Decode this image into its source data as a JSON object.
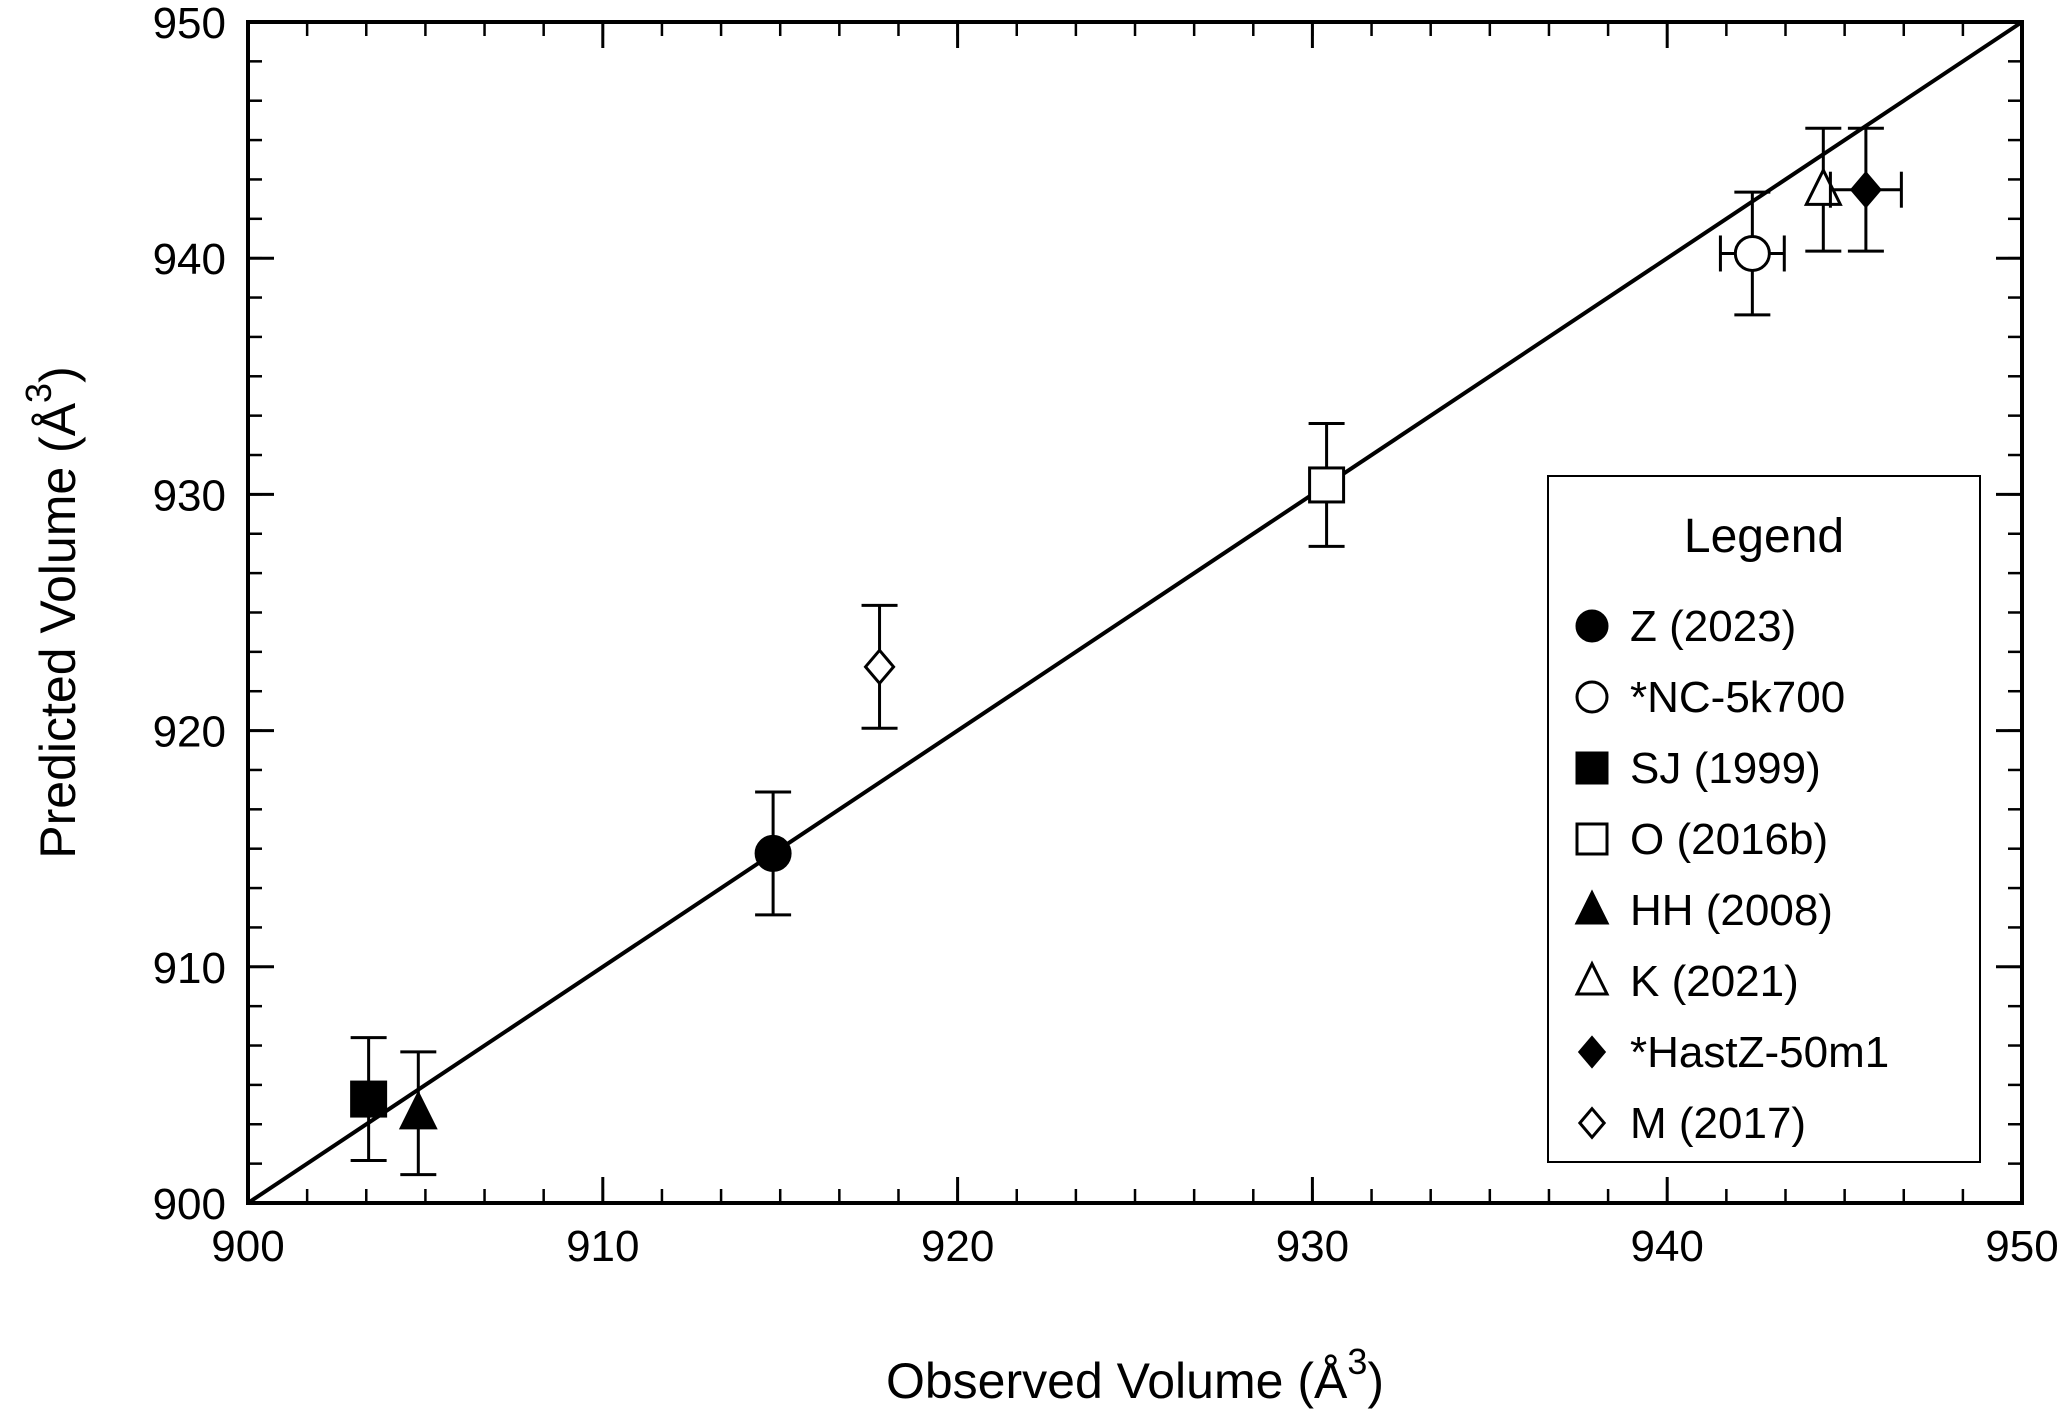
{
  "chart_data": {
    "type": "scatter",
    "xlabel": "Observed Volume (Å",
    "xlabel_sup": "3",
    "xlabel_end": ")",
    "ylabel": "Predicted Volume (Å",
    "ylabel_sup": "3",
    "ylabel_end": ")",
    "xlim": [
      900,
      950
    ],
    "ylim": [
      900,
      950
    ],
    "x_ticks": [
      900,
      910,
      920,
      930,
      940,
      950
    ],
    "y_ticks": [
      900,
      910,
      920,
      930,
      940,
      950
    ],
    "minor_tick_step": 1.6667,
    "grid": false,
    "reference_line": {
      "from": [
        900,
        900
      ],
      "to": [
        950,
        950
      ]
    },
    "legend": {
      "title": "Legend",
      "placement": "right"
    },
    "series": [
      {
        "name": "Z (2023)",
        "marker": "circle",
        "filled": true,
        "x": 914.8,
        "y": 914.8,
        "yerr": 2.6,
        "xerr": 0
      },
      {
        "name": "*NC-5k700",
        "marker": "circle",
        "filled": false,
        "x": 942.4,
        "y": 940.2,
        "yerr": 2.6,
        "xerr": 0.9
      },
      {
        "name": "SJ (1999)",
        "marker": "square",
        "filled": true,
        "x": 903.4,
        "y": 904.4,
        "yerr": 2.6,
        "xerr": 0
      },
      {
        "name": "O (2016b)",
        "marker": "square",
        "filled": false,
        "x": 930.4,
        "y": 930.4,
        "yerr": 2.6,
        "xerr": 0
      },
      {
        "name": "HH (2008)",
        "marker": "triangle",
        "filled": true,
        "x": 904.8,
        "y": 903.8,
        "yerr": 2.6,
        "xerr": 0
      },
      {
        "name": "K (2021)",
        "marker": "triangle",
        "filled": false,
        "x": 944.4,
        "y": 942.9,
        "yerr": 2.6,
        "xerr": 0
      },
      {
        "name": "*HastZ-50m1",
        "marker": "diamond",
        "filled": true,
        "x": 945.6,
        "y": 942.9,
        "yerr": 2.6,
        "xerr": 1.0
      },
      {
        "name": "M (2017)",
        "marker": "diamond",
        "filled": false,
        "x": 917.8,
        "y": 922.7,
        "yerr": 2.6,
        "xerr": 0
      }
    ],
    "colors": {
      "line": "#000000",
      "background": "#ffffff"
    }
  }
}
